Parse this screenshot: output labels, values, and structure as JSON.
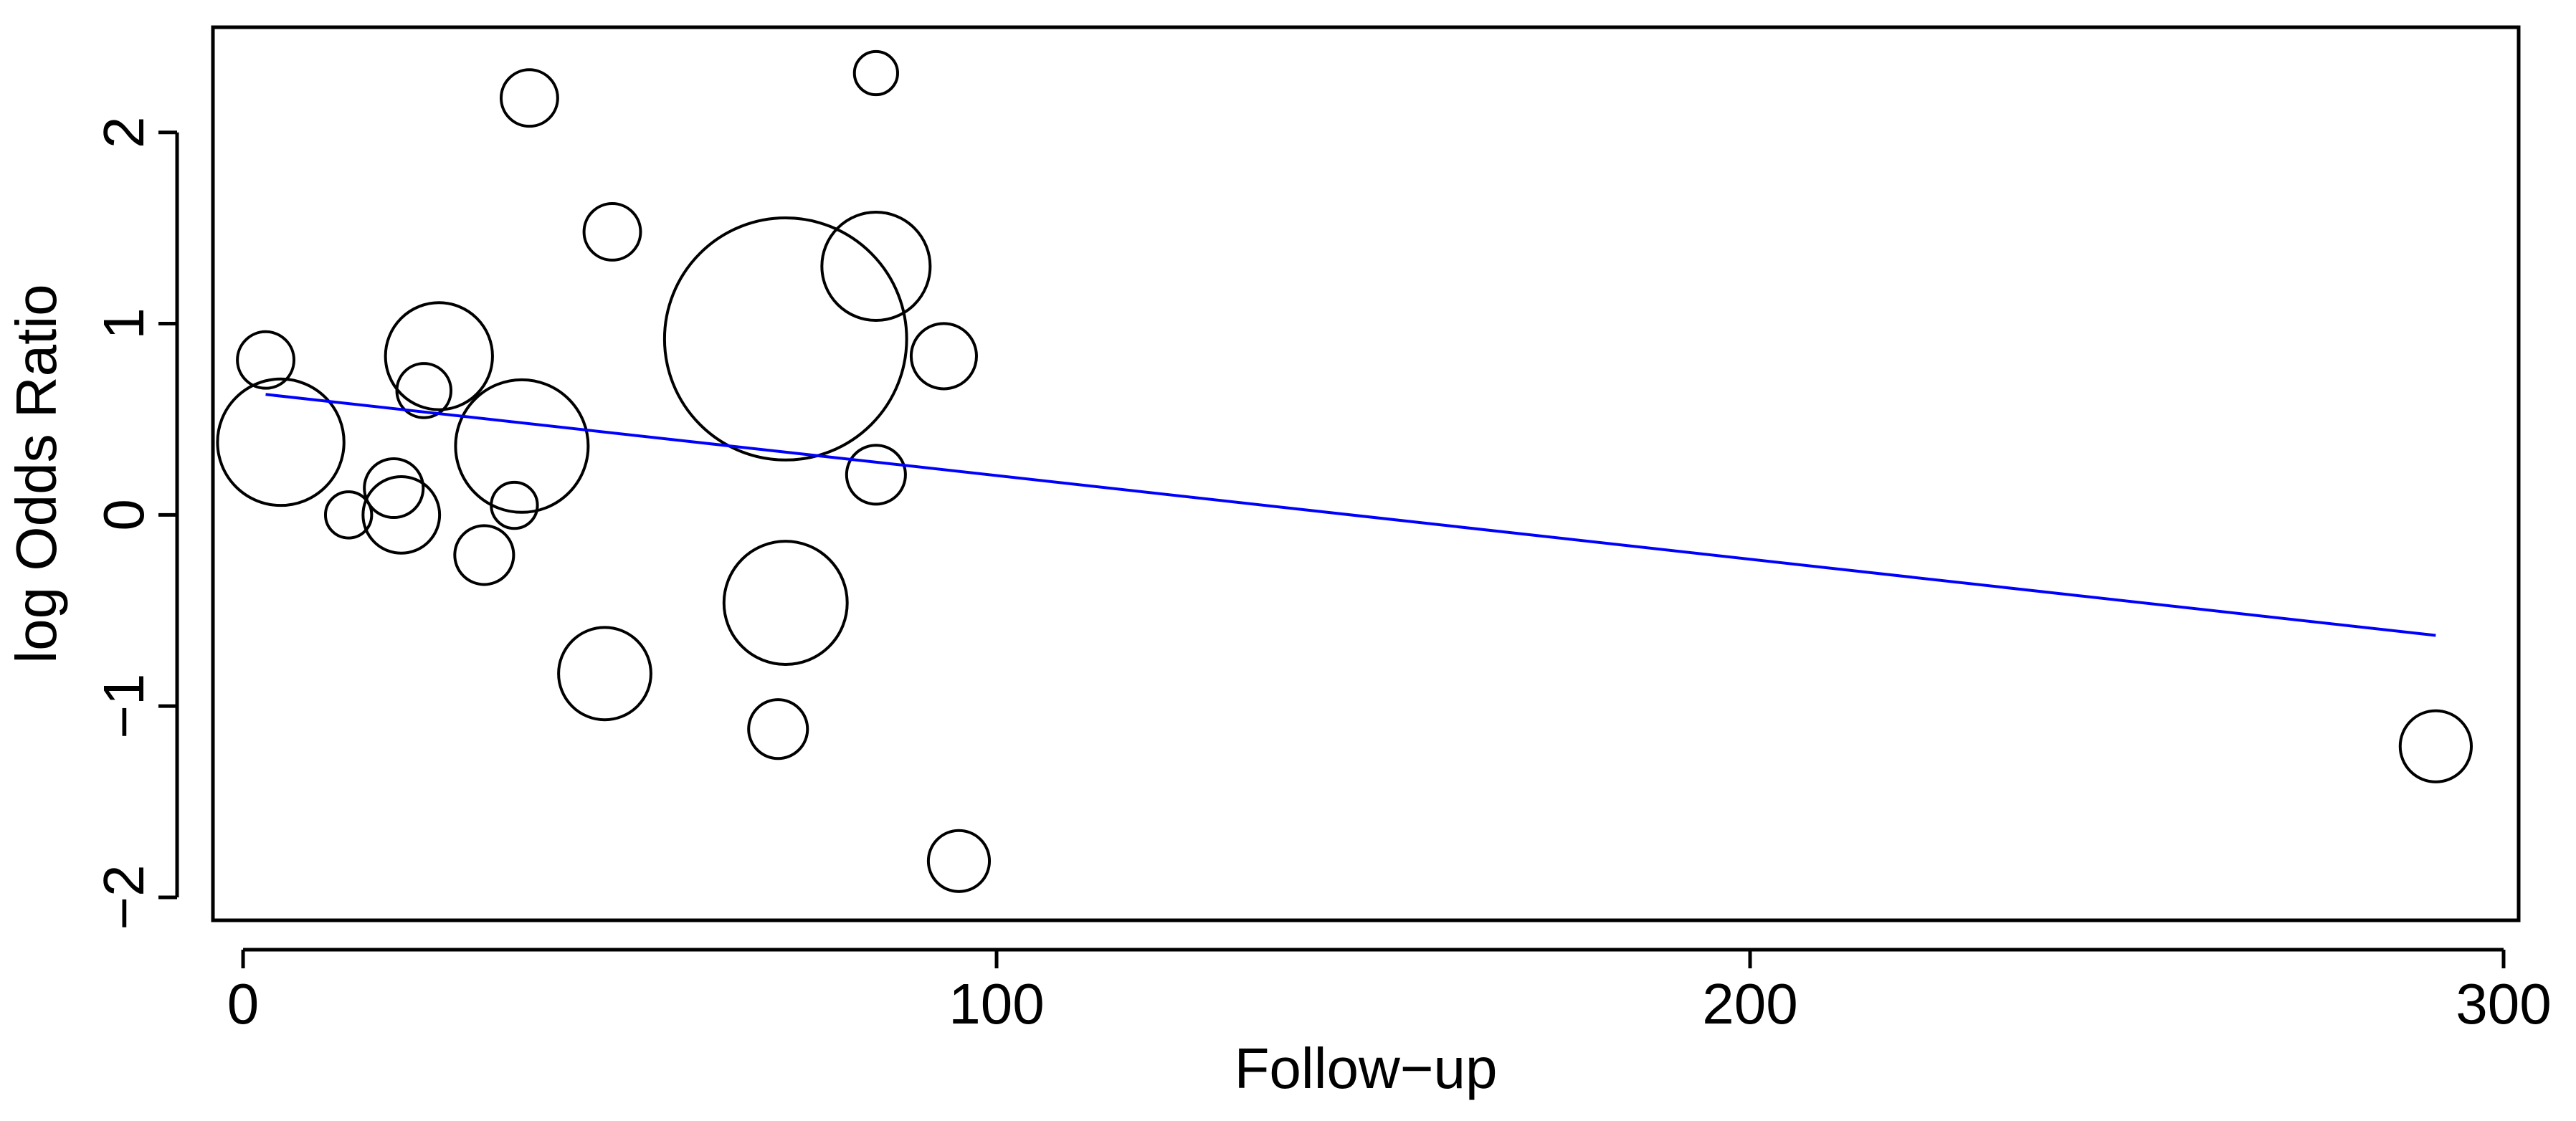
{
  "chart_data": {
    "type": "scatter",
    "title": "",
    "xlabel": "Follow−up",
    "ylabel": "log Odds Ratio",
    "xlim": [
      -4,
      302
    ],
    "ylim": [
      -2.12,
      2.55
    ],
    "xticks": [
      0,
      100,
      200,
      300
    ],
    "xtick_labels": [
      "0",
      "100",
      "200",
      "300"
    ],
    "yticks": [
      -2,
      -1,
      0,
      1,
      2
    ],
    "ytick_labels": [
      "−2",
      "−1",
      "0",
      "1",
      "2"
    ],
    "grid": false,
    "legend": "none",
    "marker": "open-circle",
    "marker_size_meaning": "study weight (relative)",
    "points": [
      {
        "x": 3,
        "y": 0.81,
        "w": 1.2
      },
      {
        "x": 5,
        "y": 0.38,
        "w": 6.0
      },
      {
        "x": 14,
        "y": 0.0,
        "w": 0.8
      },
      {
        "x": 20,
        "y": 0.14,
        "w": 1.3
      },
      {
        "x": 21,
        "y": 0.0,
        "w": 2.2
      },
      {
        "x": 24,
        "y": 0.65,
        "w": 1.1
      },
      {
        "x": 26,
        "y": 0.83,
        "w": 4.3
      },
      {
        "x": 32,
        "y": -0.21,
        "w": 1.3
      },
      {
        "x": 36,
        "y": 0.05,
        "w": 0.8
      },
      {
        "x": 37,
        "y": 0.36,
        "w": 6.6
      },
      {
        "x": 38,
        "y": 2.18,
        "w": 1.2
      },
      {
        "x": 48,
        "y": -0.83,
        "w": 3.2
      },
      {
        "x": 49,
        "y": 1.48,
        "w": 1.2
      },
      {
        "x": 71,
        "y": -1.12,
        "w": 1.3
      },
      {
        "x": 72,
        "y": -0.46,
        "w": 5.7
      },
      {
        "x": 72,
        "y": 0.92,
        "w": 22.0
      },
      {
        "x": 84,
        "y": 0.21,
        "w": 1.3
      },
      {
        "x": 84,
        "y": 1.3,
        "w": 4.4
      },
      {
        "x": 84,
        "y": 2.31,
        "w": 0.7
      },
      {
        "x": 93,
        "y": 0.83,
        "w": 1.6
      },
      {
        "x": 95,
        "y": -1.81,
        "w": 1.4
      },
      {
        "x": 291,
        "y": -1.21,
        "w": 1.9
      }
    ],
    "regression_line": {
      "color": "#0000ff",
      "x": [
        3,
        291
      ],
      "y": [
        0.63,
        -0.63
      ]
    }
  }
}
